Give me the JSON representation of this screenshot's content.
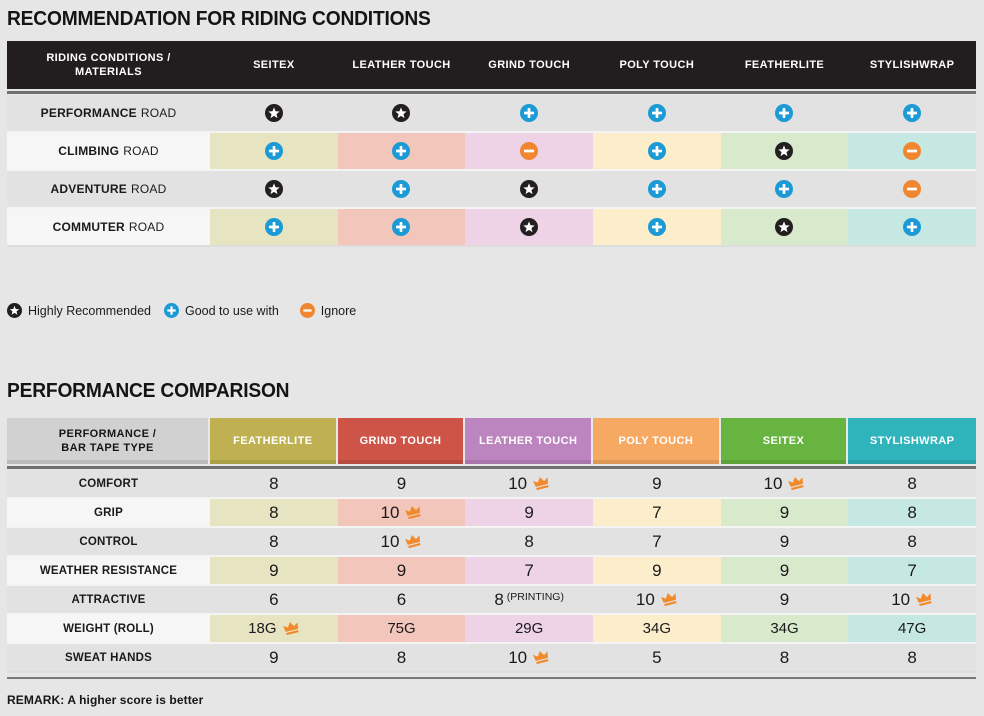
{
  "colors": {
    "page_bg": "#e7e6e6",
    "row_gray": "#e3e2e2",
    "label_light": "#f7f6f6",
    "header1_bg": "#221e20",
    "header2_label_bg": "#d2d1d1",
    "tints": [
      "#e7e4c2",
      "#f3c6bc",
      "#eed3e7",
      "#fdeecb",
      "#d9e9cc",
      "#c6e8e3"
    ],
    "icon_star": "#231f20",
    "icon_plus": "#1c9ad6",
    "icon_minus": "#f0862f",
    "icon_crown": "#f18a2b"
  },
  "section1": {
    "title": "RECOMMENDATION FOR RIDING CONDITIONS",
    "table": {
      "corner_line1": "RIDING CONDITIONS /",
      "corner_line2": "MATERIALS",
      "columns": [
        "SEITEX",
        "LEATHER TOUCH",
        "GRIND TOUCH",
        "POLY TOUCH",
        "FEATHERLITE",
        "STYLISHWRAP"
      ],
      "rows": [
        {
          "label_strong": "PERFORMANCE",
          "label_rest": "ROAD",
          "tinted": false,
          "cells": [
            "star",
            "star",
            "plus",
            "plus",
            "plus",
            "plus"
          ]
        },
        {
          "label_strong": "CLIMBING",
          "label_rest": "ROAD",
          "tinted": true,
          "cells": [
            "plus",
            "plus",
            "minus",
            "plus",
            "star",
            "minus"
          ]
        },
        {
          "label_strong": "ADVENTURE",
          "label_rest": "ROAD",
          "tinted": false,
          "cells": [
            "star",
            "plus",
            "star",
            "plus",
            "plus",
            "minus"
          ]
        },
        {
          "label_strong": "COMMUTER",
          "label_rest": "ROAD",
          "tinted": true,
          "cells": [
            "plus",
            "plus",
            "star",
            "plus",
            "star",
            "plus"
          ]
        }
      ]
    },
    "legend": [
      {
        "icon": "star",
        "label": "Highly Recommended"
      },
      {
        "icon": "plus",
        "label": "Good to use with"
      },
      {
        "icon": "minus",
        "label": "Ignore"
      }
    ]
  },
  "section2": {
    "title": "PERFORMANCE COMPARISON",
    "table": {
      "corner_line1": "PERFORMANCE /",
      "corner_line2": "BAR TAPE TYPE",
      "columns": [
        {
          "label": "FEATHERLITE",
          "color": "#bfb052"
        },
        {
          "label": "GRIND TOUCH",
          "color": "#cd5447"
        },
        {
          "label": "LEATHER TOUCH",
          "color": "#bd85c0"
        },
        {
          "label": "POLY TOUCH",
          "color": "#f6a963"
        },
        {
          "label": "SEITEX",
          "color": "#68b440"
        },
        {
          "label": "STYLISHWRAP",
          "color": "#2fb4bc"
        }
      ],
      "rows": [
        {
          "label": "COMFORT",
          "tinted": false,
          "small": false,
          "cells": [
            {
              "v": "8"
            },
            {
              "v": "9"
            },
            {
              "v": "10",
              "crown": true
            },
            {
              "v": "9"
            },
            {
              "v": "10",
              "crown": true
            },
            {
              "v": "8"
            }
          ]
        },
        {
          "label": "GRIP",
          "tinted": true,
          "small": false,
          "cells": [
            {
              "v": "8"
            },
            {
              "v": "10",
              "crown": true
            },
            {
              "v": "9"
            },
            {
              "v": "7"
            },
            {
              "v": "9"
            },
            {
              "v": "8"
            }
          ]
        },
        {
          "label": "CONTROL",
          "tinted": false,
          "small": false,
          "cells": [
            {
              "v": "8"
            },
            {
              "v": "10",
              "crown": true
            },
            {
              "v": "8"
            },
            {
              "v": "7"
            },
            {
              "v": "9"
            },
            {
              "v": "8"
            }
          ]
        },
        {
          "label": "WEATHER RESISTANCE",
          "tinted": true,
          "small": false,
          "cells": [
            {
              "v": "9"
            },
            {
              "v": "9"
            },
            {
              "v": "7"
            },
            {
              "v": "9"
            },
            {
              "v": "9"
            },
            {
              "v": "7"
            }
          ]
        },
        {
          "label": "ATTRACTIVE",
          "tinted": false,
          "small": false,
          "cells": [
            {
              "v": "6"
            },
            {
              "v": "6"
            },
            {
              "v": "8",
              "suffix": "(PRINTING)"
            },
            {
              "v": "10",
              "crown": true
            },
            {
              "v": "9"
            },
            {
              "v": "10",
              "crown": true
            }
          ]
        },
        {
          "label": "WEIGHT (ROLL)",
          "tinted": true,
          "small": true,
          "cells": [
            {
              "v": "18G",
              "crown": true
            },
            {
              "v": "75G"
            },
            {
              "v": "29G"
            },
            {
              "v": "34G"
            },
            {
              "v": "34G"
            },
            {
              "v": "47G"
            }
          ]
        },
        {
          "label": "SWEAT HANDS",
          "tinted": false,
          "small": false,
          "cells": [
            {
              "v": "9"
            },
            {
              "v": "8"
            },
            {
              "v": "10",
              "crown": true
            },
            {
              "v": "5"
            },
            {
              "v": "8"
            },
            {
              "v": "8"
            }
          ]
        }
      ]
    },
    "remark": "REMARK: A higher score is better"
  }
}
